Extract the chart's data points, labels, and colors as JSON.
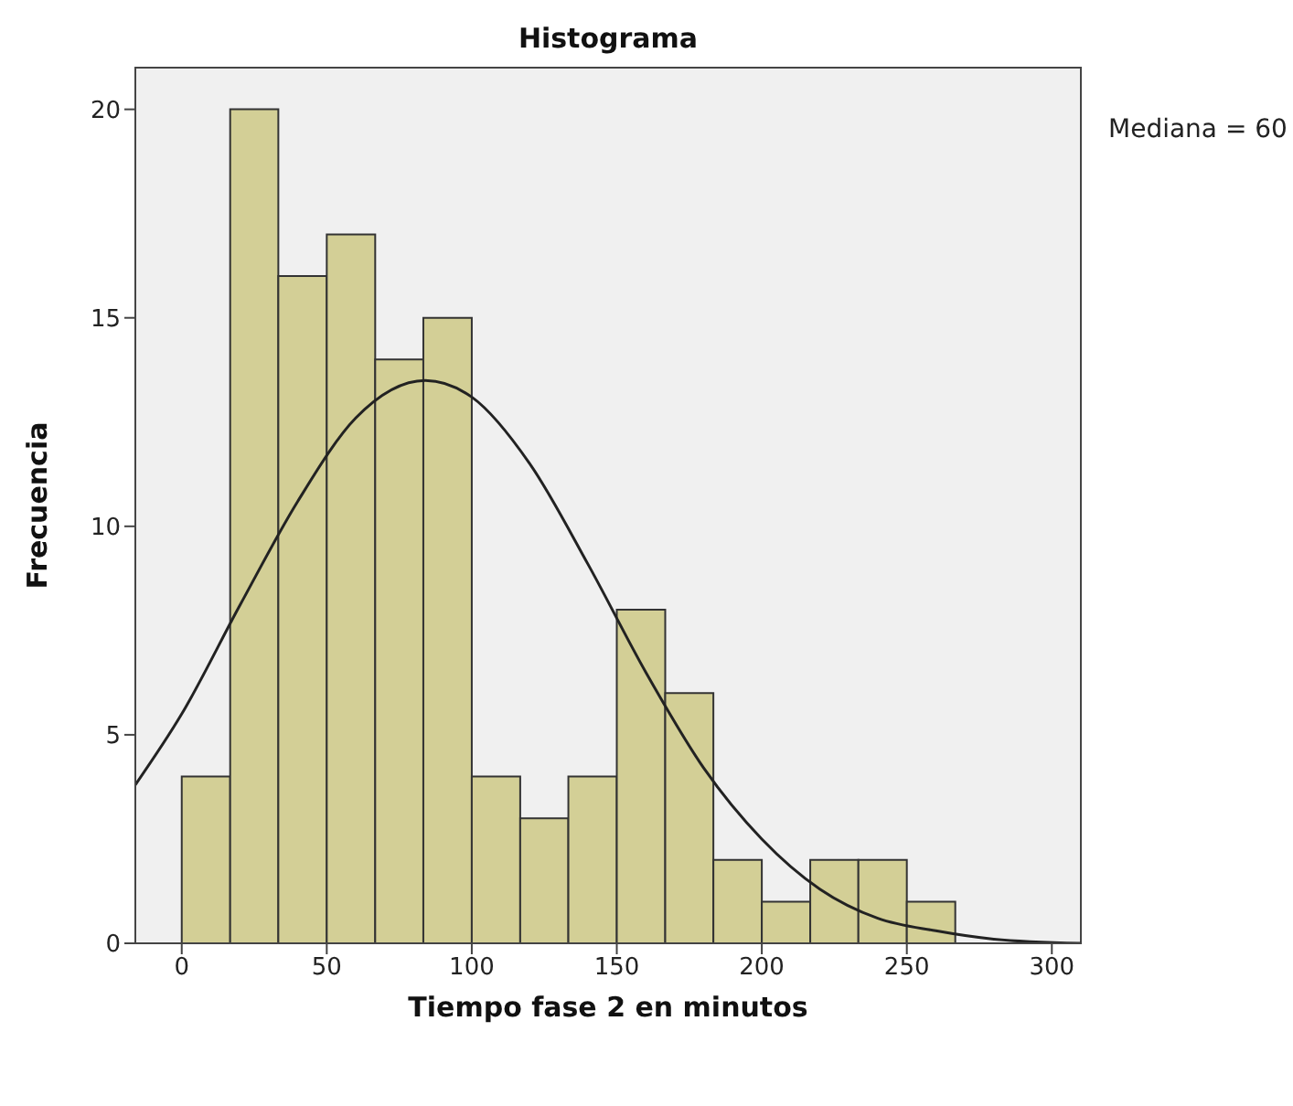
{
  "chart_data": {
    "type": "histogram",
    "title": "Histograma",
    "xlabel": "Tiempo fase 2 en minutos",
    "ylabel": "Frecuencia",
    "bins": [
      0,
      16.7,
      33.3,
      50,
      66.7,
      83.3,
      100,
      116.7,
      133.3,
      150,
      166.7,
      183.3,
      200,
      216.7,
      233.3,
      250,
      266.7
    ],
    "values": [
      4,
      20,
      16,
      17,
      14,
      15,
      4,
      3,
      4,
      8,
      6,
      2,
      1,
      2,
      2,
      1
    ],
    "color": "#d3cf96",
    "series": [
      {
        "type": "line",
        "color": "#222222",
        "x": [
          -16,
          0,
          20,
          40,
          60,
          84,
          100,
          120,
          140,
          160,
          180,
          200,
          220,
          240,
          260,
          280,
          310
        ],
        "values": [
          3.8,
          5.5,
          8.1,
          10.6,
          12.6,
          13.5,
          13.1,
          11.5,
          9.1,
          6.5,
          4.2,
          2.5,
          1.3,
          0.6,
          0.3,
          0.1,
          0
        ]
      }
    ],
    "xlim": [
      -16,
      310
    ],
    "xticks": [
      0,
      50,
      100,
      150,
      200,
      250,
      300
    ],
    "ylim": [
      0,
      21
    ],
    "yticks": [
      0,
      5,
      10,
      15,
      20
    ],
    "annotations": [
      "Mediana = 60"
    ],
    "marker": "none"
  }
}
